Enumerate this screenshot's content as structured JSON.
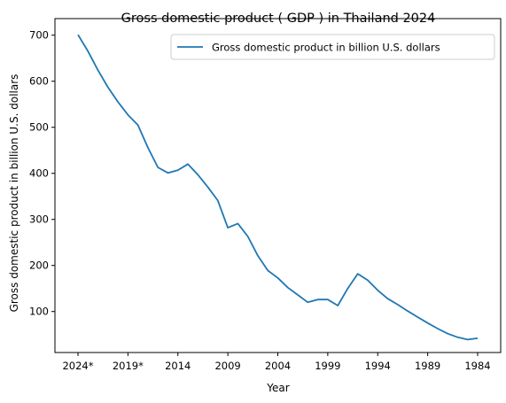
{
  "chart_data": {
    "type": "line",
    "title": "Gross domestic product ( GDP ) in Thailand 2024",
    "xlabel": "Year",
    "ylabel": "Gross domestic product in billion U.S. dollars",
    "x_tick_labels": [
      "2024*",
      "2019*",
      "2014",
      "2009",
      "2004",
      "1999",
      "1994",
      "1989",
      "1984"
    ],
    "y_ticks": [
      100,
      200,
      300,
      400,
      500,
      600,
      700
    ],
    "ylim": [
      11,
      736
    ],
    "grid": false,
    "legend_position": "top-right",
    "series": [
      {
        "name": "Gross domestic product in billion U.S. dollars",
        "color": "#1f77b4",
        "x": [
          2024,
          2023,
          2022,
          2021,
          2020,
          2019,
          2018,
          2017,
          2016,
          2015,
          2014,
          2013,
          2012,
          2011,
          2010,
          2009,
          2008,
          2007,
          2006,
          2005,
          2004,
          2003,
          2002,
          2001,
          2000,
          1999,
          1998,
          1997,
          1996,
          1995,
          1994,
          1993,
          1992,
          1991,
          1990,
          1989,
          1988,
          1987,
          1986,
          1985,
          1984
        ],
        "values": [
          701,
          665,
          624,
          587,
          555,
          527,
          505,
          456,
          413,
          401,
          407,
          420,
          397,
          370,
          341,
          282,
          291,
          263,
          221,
          189,
          173,
          152,
          136,
          120,
          126,
          126,
          113,
          150,
          182,
          168,
          146,
          128,
          115,
          101,
          88,
          75,
          63,
          52,
          44,
          39,
          42
        ]
      }
    ]
  }
}
